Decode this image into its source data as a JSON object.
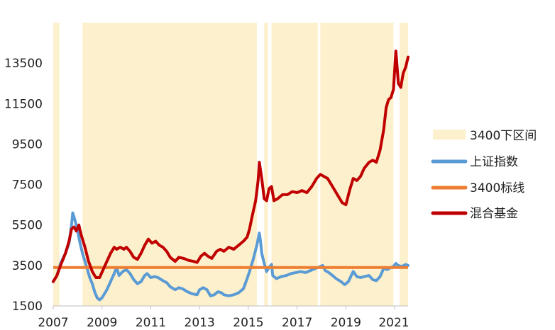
{
  "chart_data": {
    "type": "line",
    "y_ticks": [
      "1500",
      "3500",
      "5500",
      "7500",
      "9500",
      "11500",
      "13500"
    ],
    "y_range": [
      1500,
      15500
    ],
    "x_ticks": [
      "2007",
      "2009",
      "2011",
      "2013",
      "2015",
      "2017",
      "2019",
      "2021"
    ],
    "x_range": [
      2007.0,
      2021.55
    ],
    "threshold": 3400,
    "legend": [
      "3400下区间",
      "上证指数",
      "3400标线",
      "混合基金"
    ],
    "colors": {
      "band": "#fdf0cc",
      "index": "#5b9bd5",
      "threshold": "#ed7d31",
      "fund": "#c00000"
    },
    "shaded_periods": [
      [
        2007.0,
        2007.25
      ],
      [
        2008.2,
        2015.35
      ],
      [
        2015.65,
        2015.8
      ],
      [
        2015.95,
        2017.85
      ],
      [
        2017.95,
        2020.95
      ],
      [
        2021.2,
        2021.55
      ]
    ],
    "series": [
      {
        "name": "上证指数",
        "points": [
          [
            2007.0,
            2700
          ],
          [
            2007.15,
            3000
          ],
          [
            2007.3,
            3600
          ],
          [
            2007.5,
            4100
          ],
          [
            2007.65,
            4600
          ],
          [
            2007.75,
            5500
          ],
          [
            2007.8,
            6100
          ],
          [
            2007.9,
            5700
          ],
          [
            2008.0,
            5200
          ],
          [
            2008.1,
            4600
          ],
          [
            2008.2,
            4100
          ],
          [
            2008.35,
            3500
          ],
          [
            2008.5,
            2900
          ],
          [
            2008.6,
            2600
          ],
          [
            2008.7,
            2200
          ],
          [
            2008.8,
            1900
          ],
          [
            2008.9,
            1800
          ],
          [
            2009.0,
            1900
          ],
          [
            2009.2,
            2300
          ],
          [
            2009.35,
            2700
          ],
          [
            2009.5,
            3100
          ],
          [
            2009.6,
            3400
          ],
          [
            2009.7,
            3000
          ],
          [
            2009.85,
            3200
          ],
          [
            2010.0,
            3300
          ],
          [
            2010.15,
            3100
          ],
          [
            2010.3,
            2800
          ],
          [
            2010.45,
            2600
          ],
          [
            2010.6,
            2700
          ],
          [
            2010.75,
            3000
          ],
          [
            2010.85,
            3100
          ],
          [
            2011.0,
            2900
          ],
          [
            2011.15,
            2950
          ],
          [
            2011.3,
            2900
          ],
          [
            2011.5,
            2750
          ],
          [
            2011.65,
            2650
          ],
          [
            2011.8,
            2450
          ],
          [
            2012.0,
            2300
          ],
          [
            2012.15,
            2400
          ],
          [
            2012.3,
            2350
          ],
          [
            2012.5,
            2200
          ],
          [
            2012.7,
            2100
          ],
          [
            2012.9,
            2050
          ],
          [
            2013.0,
            2300
          ],
          [
            2013.15,
            2400
          ],
          [
            2013.3,
            2300
          ],
          [
            2013.45,
            2000
          ],
          [
            2013.6,
            2050
          ],
          [
            2013.75,
            2200
          ],
          [
            2013.9,
            2150
          ],
          [
            2014.0,
            2050
          ],
          [
            2014.2,
            2000
          ],
          [
            2014.4,
            2050
          ],
          [
            2014.6,
            2150
          ],
          [
            2014.8,
            2350
          ],
          [
            2014.95,
            2850
          ],
          [
            2015.05,
            3200
          ],
          [
            2015.2,
            3800
          ],
          [
            2015.35,
            4500
          ],
          [
            2015.45,
            5100
          ],
          [
            2015.5,
            4700
          ],
          [
            2015.55,
            4100
          ],
          [
            2015.65,
            3600
          ],
          [
            2015.75,
            3200
          ],
          [
            2015.85,
            3400
          ],
          [
            2015.95,
            3550
          ],
          [
            2016.0,
            3000
          ],
          [
            2016.15,
            2850
          ],
          [
            2016.35,
            2950
          ],
          [
            2016.55,
            3000
          ],
          [
            2016.75,
            3100
          ],
          [
            2016.95,
            3150
          ],
          [
            2017.15,
            3200
          ],
          [
            2017.35,
            3150
          ],
          [
            2017.55,
            3250
          ],
          [
            2017.75,
            3350
          ],
          [
            2017.85,
            3400
          ],
          [
            2017.95,
            3450
          ],
          [
            2018.05,
            3500
          ],
          [
            2018.15,
            3250
          ],
          [
            2018.3,
            3150
          ],
          [
            2018.45,
            3000
          ],
          [
            2018.6,
            2850
          ],
          [
            2018.8,
            2700
          ],
          [
            2018.95,
            2550
          ],
          [
            2019.1,
            2700
          ],
          [
            2019.3,
            3200
          ],
          [
            2019.45,
            2950
          ],
          [
            2019.6,
            2900
          ],
          [
            2019.75,
            2950
          ],
          [
            2019.95,
            3000
          ],
          [
            2020.1,
            2800
          ],
          [
            2020.25,
            2750
          ],
          [
            2020.4,
            2950
          ],
          [
            2020.55,
            3350
          ],
          [
            2020.7,
            3300
          ],
          [
            2020.85,
            3400
          ],
          [
            2020.95,
            3450
          ],
          [
            2021.05,
            3600
          ],
          [
            2021.15,
            3500
          ],
          [
            2021.3,
            3450
          ],
          [
            2021.45,
            3550
          ],
          [
            2021.55,
            3500
          ]
        ]
      },
      {
        "name": "混合基金",
        "points": [
          [
            2007.0,
            2700
          ],
          [
            2007.15,
            3000
          ],
          [
            2007.3,
            3500
          ],
          [
            2007.5,
            4100
          ],
          [
            2007.65,
            4700
          ],
          [
            2007.75,
            5300
          ],
          [
            2007.85,
            5400
          ],
          [
            2007.95,
            5200
          ],
          [
            2008.05,
            5500
          ],
          [
            2008.15,
            5000
          ],
          [
            2008.3,
            4400
          ],
          [
            2008.45,
            3700
          ],
          [
            2008.6,
            3200
          ],
          [
            2008.75,
            2900
          ],
          [
            2008.9,
            2900
          ],
          [
            2009.05,
            3300
          ],
          [
            2009.2,
            3700
          ],
          [
            2009.35,
            4100
          ],
          [
            2009.5,
            4400
          ],
          [
            2009.6,
            4300
          ],
          [
            2009.75,
            4400
          ],
          [
            2009.9,
            4300
          ],
          [
            2010.0,
            4400
          ],
          [
            2010.15,
            4200
          ],
          [
            2010.3,
            3900
          ],
          [
            2010.45,
            3800
          ],
          [
            2010.6,
            4100
          ],
          [
            2010.75,
            4500
          ],
          [
            2010.9,
            4800
          ],
          [
            2011.05,
            4600
          ],
          [
            2011.2,
            4700
          ],
          [
            2011.35,
            4500
          ],
          [
            2011.5,
            4400
          ],
          [
            2011.65,
            4200
          ],
          [
            2011.8,
            3900
          ],
          [
            2012.0,
            3700
          ],
          [
            2012.15,
            3900
          ],
          [
            2012.35,
            3850
          ],
          [
            2012.55,
            3750
          ],
          [
            2012.75,
            3700
          ],
          [
            2012.9,
            3650
          ],
          [
            2013.05,
            3950
          ],
          [
            2013.2,
            4100
          ],
          [
            2013.35,
            3950
          ],
          [
            2013.5,
            3850
          ],
          [
            2013.7,
            4200
          ],
          [
            2013.85,
            4300
          ],
          [
            2014.0,
            4200
          ],
          [
            2014.2,
            4400
          ],
          [
            2014.4,
            4300
          ],
          [
            2014.6,
            4500
          ],
          [
            2014.8,
            4700
          ],
          [
            2014.95,
            4900
          ],
          [
            2015.05,
            5300
          ],
          [
            2015.15,
            5900
          ],
          [
            2015.3,
            6700
          ],
          [
            2015.4,
            7700
          ],
          [
            2015.45,
            8600
          ],
          [
            2015.55,
            7800
          ],
          [
            2015.65,
            6800
          ],
          [
            2015.75,
            6700
          ],
          [
            2015.85,
            7300
          ],
          [
            2015.95,
            7400
          ],
          [
            2016.05,
            6700
          ],
          [
            2016.2,
            6800
          ],
          [
            2016.4,
            7000
          ],
          [
            2016.6,
            7000
          ],
          [
            2016.8,
            7150
          ],
          [
            2017.0,
            7100
          ],
          [
            2017.2,
            7200
          ],
          [
            2017.4,
            7100
          ],
          [
            2017.6,
            7400
          ],
          [
            2017.8,
            7800
          ],
          [
            2017.95,
            8000
          ],
          [
            2018.1,
            7900
          ],
          [
            2018.25,
            7800
          ],
          [
            2018.45,
            7400
          ],
          [
            2018.65,
            7000
          ],
          [
            2018.85,
            6600
          ],
          [
            2019.0,
            6500
          ],
          [
            2019.15,
            7200
          ],
          [
            2019.3,
            7800
          ],
          [
            2019.45,
            7700
          ],
          [
            2019.6,
            7900
          ],
          [
            2019.75,
            8300
          ],
          [
            2019.95,
            8600
          ],
          [
            2020.1,
            8700
          ],
          [
            2020.25,
            8600
          ],
          [
            2020.4,
            9200
          ],
          [
            2020.55,
            10200
          ],
          [
            2020.65,
            11300
          ],
          [
            2020.75,
            11700
          ],
          [
            2020.85,
            11800
          ],
          [
            2020.95,
            12200
          ],
          [
            2021.05,
            14100
          ],
          [
            2021.15,
            12500
          ],
          [
            2021.25,
            12300
          ],
          [
            2021.35,
            13000
          ],
          [
            2021.45,
            13300
          ],
          [
            2021.55,
            13800
          ]
        ]
      }
    ]
  }
}
